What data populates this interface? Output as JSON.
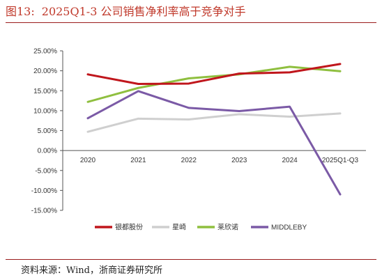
{
  "header": {
    "figure_number": "图13:",
    "title": "2025Q1-3 公司销售净利率高于竞争对手"
  },
  "source": "资料来源：Wind，浙商证券研究所",
  "chart_data": {
    "type": "line",
    "categories": [
      "2020",
      "2021",
      "2022",
      "2023",
      "2024",
      "2025Q1-Q3"
    ],
    "ylim": [
      -0.15,
      0.25
    ],
    "yticks": [
      0.25,
      0.2,
      0.15,
      0.1,
      0.05,
      0.0,
      -0.05,
      -0.1,
      -0.15
    ],
    "ytick_labels": [
      "25.00%",
      "20.00%",
      "15.00%",
      "10.00%",
      "5.00%",
      "0.00%",
      "-5.00%",
      "-10.00%",
      "-15.00%"
    ],
    "grid": false,
    "legend_position": "bottom",
    "series": [
      {
        "name": "银都股份",
        "color": "#c0161c",
        "values": [
          0.191,
          0.167,
          0.168,
          0.193,
          0.196,
          0.217
        ]
      },
      {
        "name": "星崎",
        "color": "#cfcfcf",
        "values": [
          0.047,
          0.08,
          0.078,
          0.091,
          0.085,
          0.093
        ]
      },
      {
        "name": "莱欣诺",
        "color": "#8fbf3f",
        "values": [
          0.122,
          0.157,
          0.181,
          0.191,
          0.21,
          0.199
        ]
      },
      {
        "name": "MIDDLEBY",
        "color": "#7b5aa6",
        "values": [
          0.081,
          0.149,
          0.107,
          0.099,
          0.11,
          -0.11
        ]
      }
    ]
  }
}
